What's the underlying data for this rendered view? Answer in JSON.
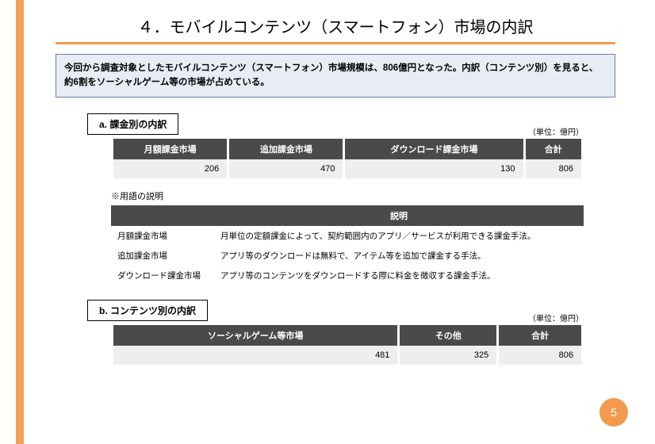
{
  "colors": {
    "accent": "#f5a05a",
    "underline": "#f29b4e",
    "introBg": "#e8ecf5",
    "introBorder": "#6a7ab3",
    "headerBg": "#4a4a4a",
    "cellBg": "#eeeeee"
  },
  "title": "４．モバイルコンテンツ（スマートフォン）市場の内訳",
  "intro": "今回から調査対象としたモバイルコンテンツ（スマートフォン）市場規模は、806億円となった。内訳（コンテンツ別）を見ると、約6割をソーシャルゲーム等の市場が占めている。",
  "sectionA": {
    "header": "a. 課金別の内訳",
    "unit": "（単位：億円）",
    "table": {
      "columns": [
        "月額課金市場",
        "追加課金市場",
        "ダウンロード課金市場",
        "合計"
      ],
      "row": [
        "206",
        "470",
        "130",
        "806"
      ]
    }
  },
  "termsNote": "※用語の説明",
  "termsTable": {
    "header": "説明",
    "rows": [
      {
        "label": "月額課金市場",
        "desc": "月単位の定額課金によって、契約範囲内のアプリ／サービスが利用できる課金手法。"
      },
      {
        "label": "追加課金市場",
        "desc": "アプリ等のダウンロードは無料で、アイテム等を追加で課金する手法。"
      },
      {
        "label": "ダウンロード課金市場",
        "desc": "アプリ等のコンテンツをダウンロードする際に料金を徴収する課金手法。"
      }
    ]
  },
  "sectionB": {
    "header": "b. コンテンツ別の内訳",
    "unit": "（単位：億円）",
    "table": {
      "columns": [
        "ソーシャルゲーム等市場",
        "その他",
        "合計"
      ],
      "row": [
        "481",
        "325",
        "806"
      ]
    }
  },
  "pageNumber": "5"
}
